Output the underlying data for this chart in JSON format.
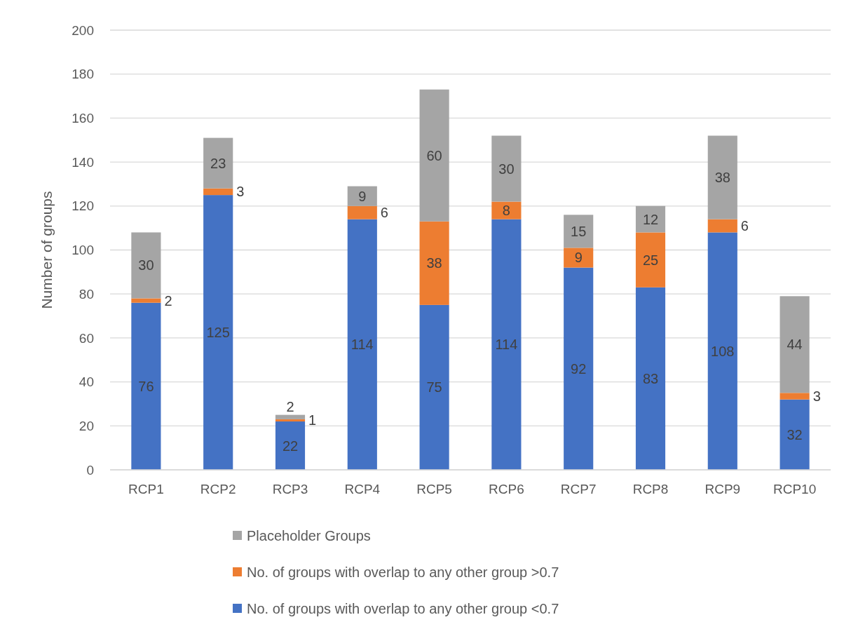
{
  "chart_data": {
    "type": "bar",
    "stacked": true,
    "ylabel": "Number of groups",
    "categories": [
      "RCP1",
      "RCP2",
      "RCP3",
      "RCP4",
      "RCP5",
      "RCP6",
      "RCP7",
      "RCP8",
      "RCP9",
      "RCP10"
    ],
    "series": [
      {
        "name": "No. of groups with overlap to any other group <0.7",
        "color": "#4472c4",
        "values": [
          76,
          125,
          22,
          114,
          75,
          114,
          92,
          83,
          108,
          32
        ]
      },
      {
        "name": "No. of groups with overlap to any other group >0.7",
        "color": "#ed7d31",
        "values": [
          2,
          3,
          1,
          6,
          38,
          8,
          9,
          25,
          6,
          3
        ]
      },
      {
        "name": "Placeholder Groups",
        "color": "#a5a5a5",
        "values": [
          30,
          23,
          2,
          9,
          60,
          30,
          15,
          12,
          38,
          44
        ]
      }
    ],
    "ylim": [
      0,
      200
    ],
    "yticks": [
      0,
      20,
      40,
      60,
      80,
      100,
      120,
      140,
      160,
      180,
      200
    ],
    "grid": "y",
    "legend": "bottom",
    "data_labels": true
  }
}
